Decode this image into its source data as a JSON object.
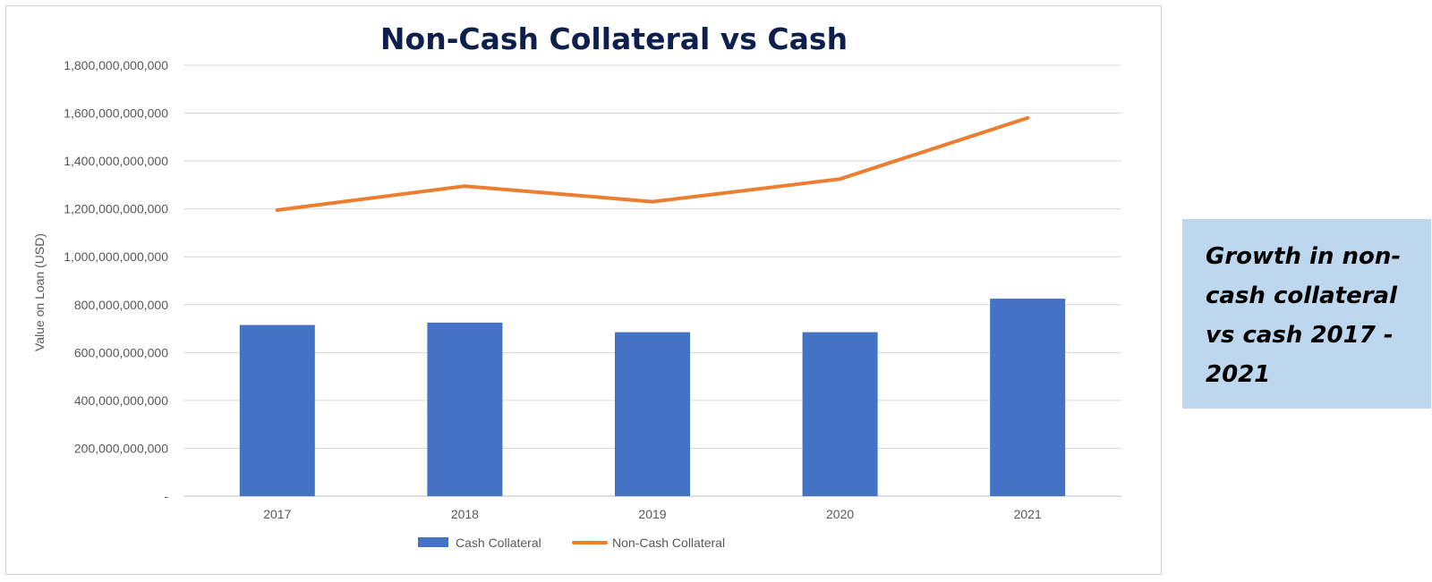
{
  "chart_data": {
    "type": "bar+line",
    "title": "Non-Cash Collateral vs Cash",
    "xlabel": "",
    "ylabel": "Value on Loan (USD)",
    "categories": [
      "2017",
      "2018",
      "2019",
      "2020",
      "2021"
    ],
    "ylim": [
      0,
      1800000000000
    ],
    "yticks": [
      0,
      200000000000,
      400000000000,
      600000000000,
      800000000000,
      1000000000000,
      1200000000000,
      1400000000000,
      1600000000000,
      1800000000000
    ],
    "ytick_labels": [
      "-",
      "200,000,000,000",
      "400,000,000,000",
      "600,000,000,000",
      "800,000,000,000",
      "1,000,000,000,000",
      "1,200,000,000,000",
      "1,400,000,000,000",
      "1,600,000,000,000",
      "1,800,000,000,000"
    ],
    "grid": true,
    "legend_position": "bottom",
    "series": [
      {
        "name": "Cash Collateral",
        "kind": "bar",
        "color": "#4472c4",
        "values": [
          715000000000,
          725000000000,
          685000000000,
          685000000000,
          825000000000
        ]
      },
      {
        "name": "Non-Cash Collateral",
        "kind": "line",
        "color": "#ed7d31",
        "values": [
          1195000000000,
          1295000000000,
          1230000000000,
          1325000000000,
          1580000000000
        ]
      }
    ]
  },
  "side_note": {
    "text": "Growth in non-cash collateral vs cash 2017 - 2021"
  }
}
